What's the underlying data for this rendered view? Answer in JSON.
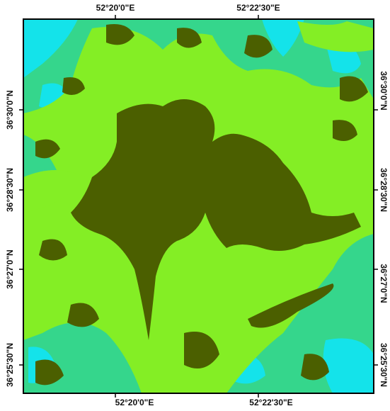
{
  "map": {
    "top_labels": [
      "52°20'0\"E",
      "52°22'30\"E"
    ],
    "bottom_labels": [
      "52°20'0\"E",
      "52°22'30\"E"
    ],
    "left_labels": [
      "36°30'0\"N",
      "36°28'30\"N",
      "36°27'0\"N",
      "36°25'30\"N"
    ],
    "right_labels": [
      "36°30'0\"N",
      "36°28'30\"N",
      "36°27'0\"N",
      "36°25'30\"N"
    ]
  }
}
